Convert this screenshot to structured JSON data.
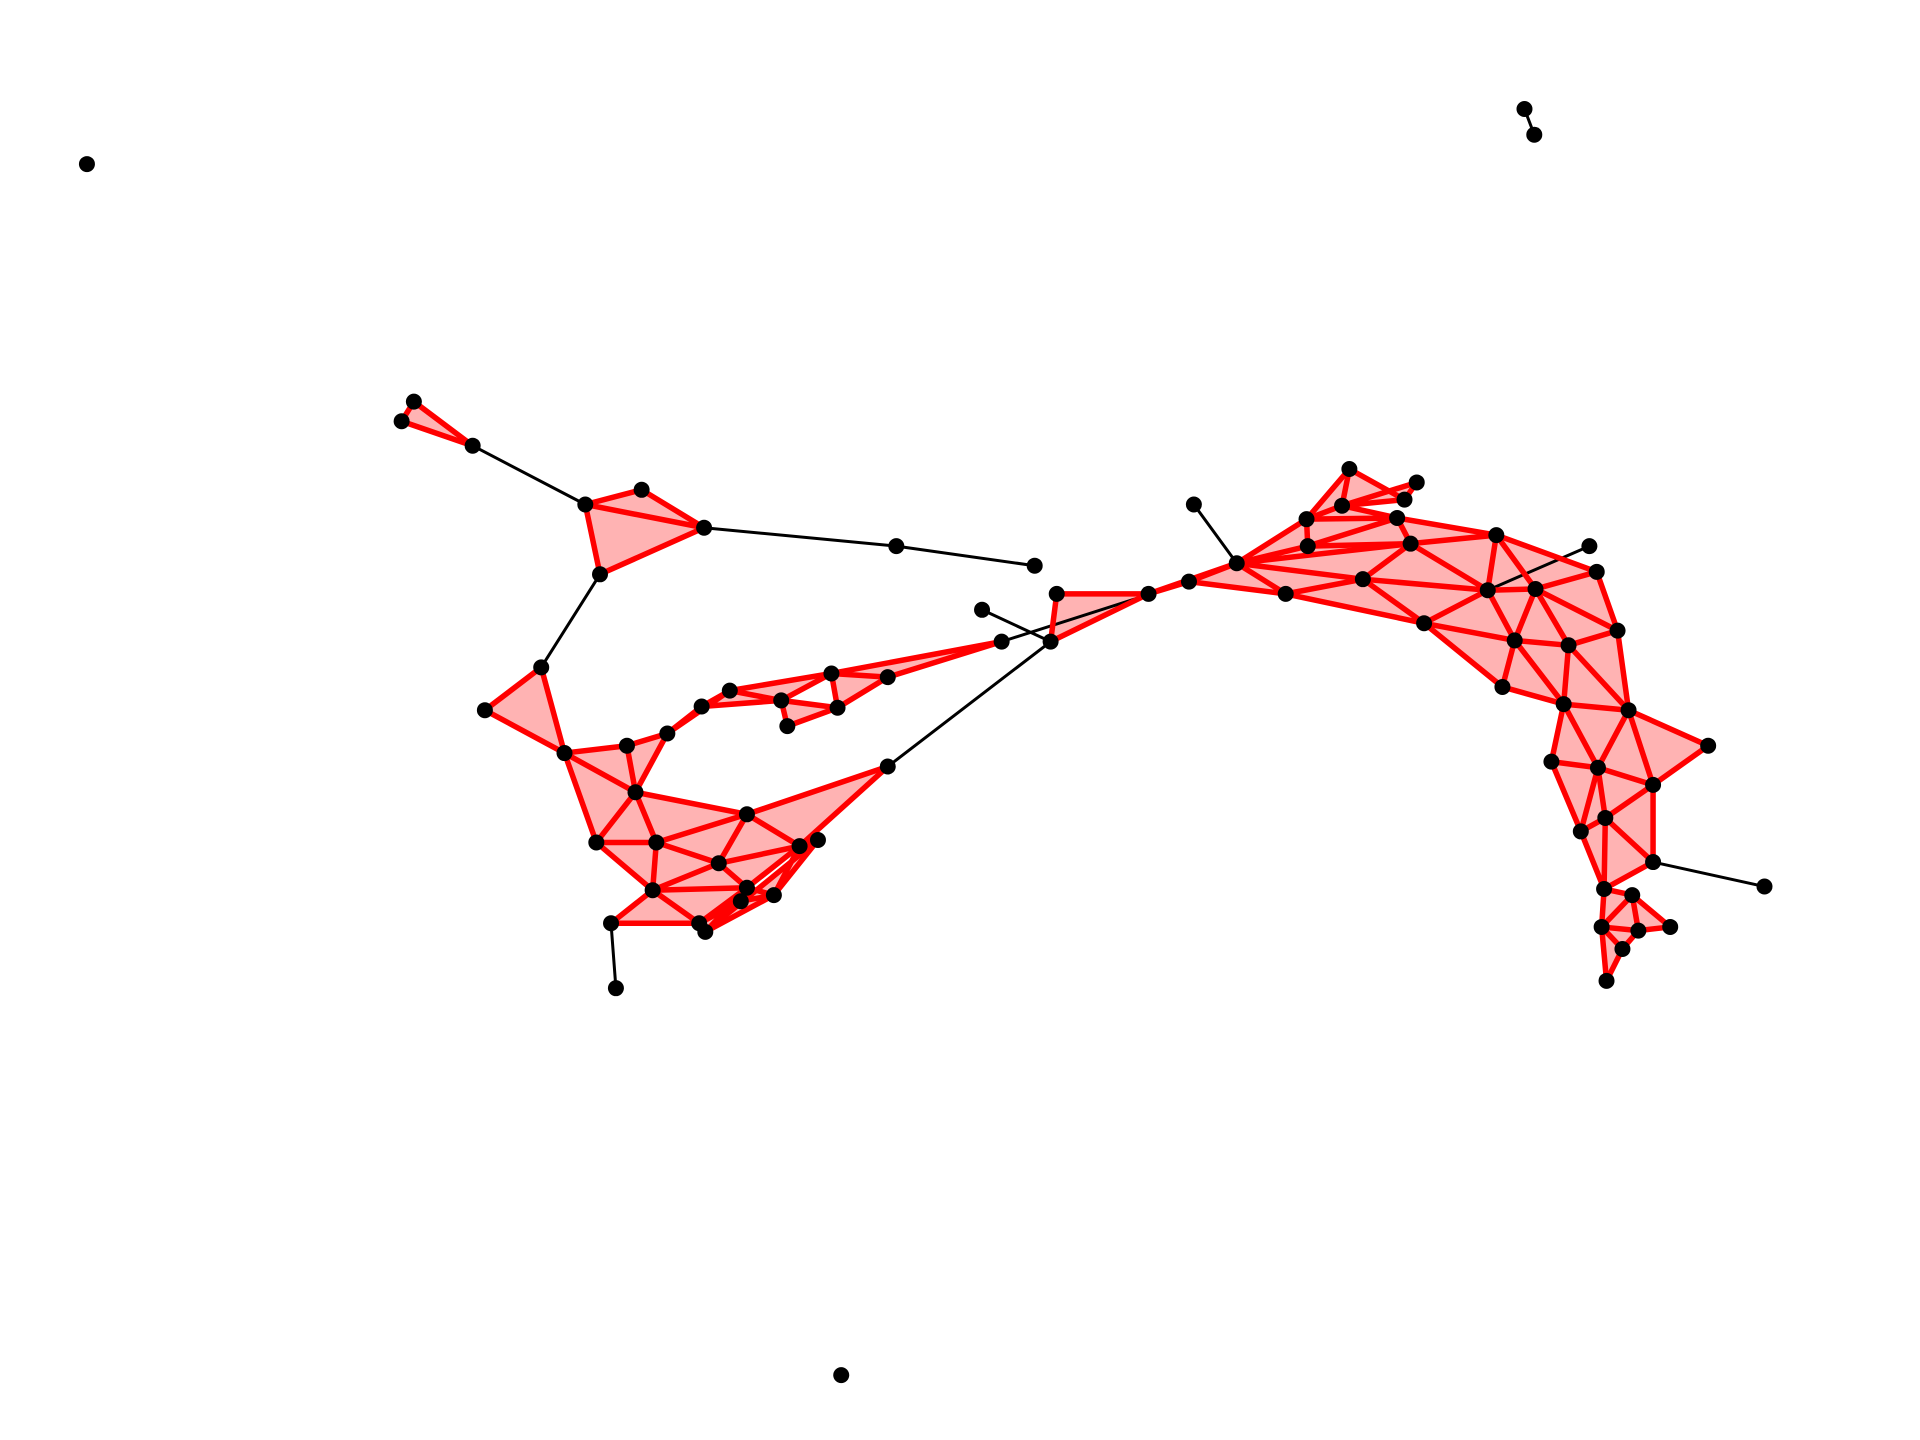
{
  "diagram": {
    "type": "simplicial-complex",
    "colors": {
      "simplex_fill": "#ffb3b3",
      "simplex_edge": "#ff0000",
      "plain_edge": "#000000",
      "vertex": "#000000",
      "background": "#ffffff"
    }
  }
}
